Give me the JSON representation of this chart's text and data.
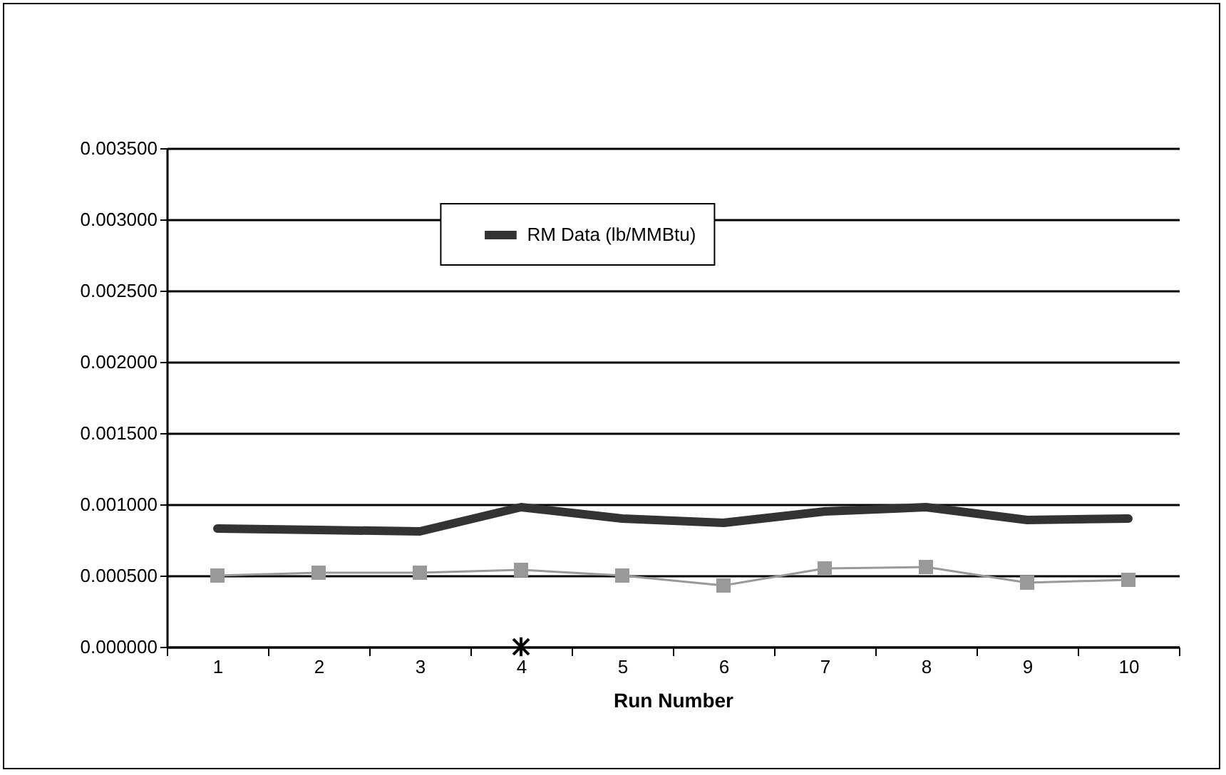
{
  "chart_data": {
    "type": "line",
    "xlabel": "Run Number",
    "categories": [
      "1",
      "2",
      "3",
      "4",
      "5",
      "6",
      "7",
      "8",
      "9",
      "10"
    ],
    "series": [
      {
        "name": "RM Data  (lb/MMBtu)",
        "color": "#333333",
        "values": [
          0.00083,
          0.00082,
          0.00081,
          0.00098,
          0.0009,
          0.00087,
          0.00095,
          0.00098,
          0.00089,
          0.0009
        ],
        "marker": "none"
      },
      {
        "color": "#999999",
        "values": [
          0.0005,
          0.00052,
          0.00052,
          0.00054,
          0.0005,
          0.00043,
          0.00055,
          0.00056,
          0.00045,
          0.00047
        ],
        "marker": "square"
      },
      {
        "type": "scatter",
        "color": "#000000",
        "x": [
          "4"
        ],
        "values": [
          0
        ],
        "marker": "cross"
      }
    ],
    "ylim": [
      0,
      0.0035
    ],
    "yticks": [
      {
        "value": 0,
        "label": "0.000000"
      },
      {
        "value": 0.0005,
        "label": "0.000500"
      },
      {
        "value": 0.001,
        "label": "0.001000"
      },
      {
        "value": 0.0015,
        "label": "0.001500"
      },
      {
        "value": 0.002,
        "label": "0.002000"
      },
      {
        "value": 0.0025,
        "label": "0.002500"
      },
      {
        "value": 0.003,
        "label": "0.003000"
      },
      {
        "value": 0.0035,
        "label": "0.003500"
      }
    ],
    "grid": "y",
    "legend": "top"
  }
}
